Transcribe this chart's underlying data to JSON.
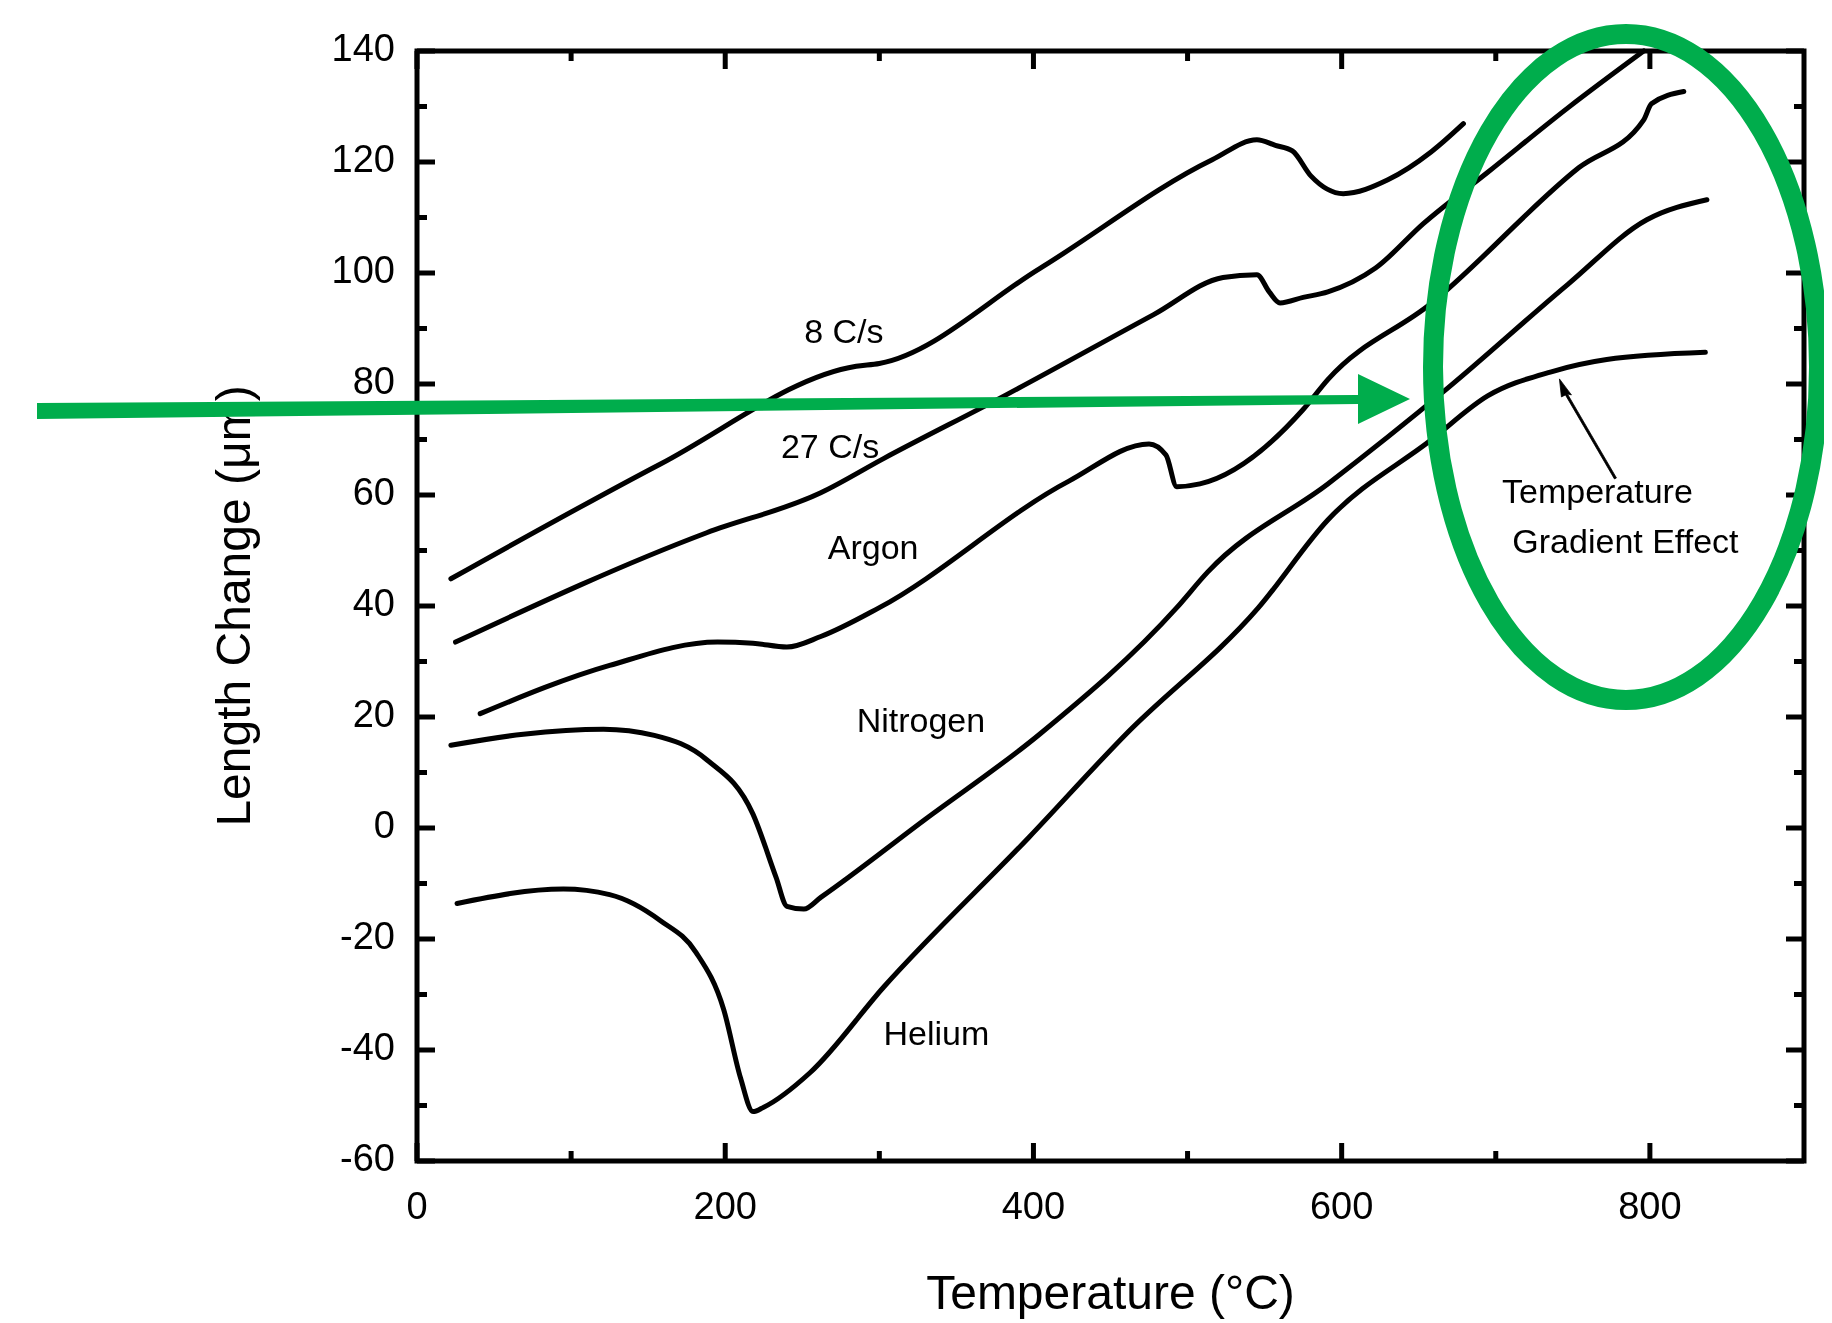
{
  "chart_data": {
    "type": "line",
    "xlabel": "Temperature (°C)",
    "ylabel": "Length Change (μm)",
    "xlim": [
      0,
      900
    ],
    "ylim": [
      -60,
      140
    ],
    "xticks": [
      0,
      {
        "value": 100,
        "label": null
      },
      200,
      {
        "value": 300,
        "label": null
      },
      400,
      {
        "value": 500,
        "label": null
      },
      600,
      {
        "value": 700,
        "label": null
      },
      800
    ],
    "yticks": [
      -60,
      {
        "value": -50,
        "label": null
      },
      -40,
      {
        "value": -30,
        "label": null
      },
      -20,
      {
        "value": -10,
        "label": null
      },
      0,
      {
        "value": 10,
        "label": null
      },
      20,
      {
        "value": 30,
        "label": null
      },
      40,
      {
        "value": 50,
        "label": null
      },
      60,
      {
        "value": 70,
        "label": null
      },
      80,
      {
        "value": 90,
        "label": null
      },
      100,
      {
        "value": 110,
        "label": null
      },
      120,
      {
        "value": 130,
        "label": null
      },
      140
    ],
    "series": [
      {
        "name": "8 C/s",
        "color": "#000000",
        "x": [
          22,
          158,
          285,
          300,
          404,
          516,
          545,
          557,
          568,
          580,
          601,
          630,
          658,
          679
        ],
        "values": [
          44.9,
          65.6,
          83.2,
          83.7,
          100.8,
          120.4,
          124,
          123,
          122,
          117.5,
          114.3,
          116.8,
          121.8,
          126.9
        ]
      },
      {
        "name": "27 C/s",
        "color": "#000000",
        "x": [
          25,
          188,
          262,
          303,
          382,
          478,
          523,
          545,
          553,
          560,
          575,
          591,
          622,
          653,
          695,
          747,
          796
        ],
        "values": [
          33.5,
          53.2,
          60.4,
          66.6,
          78,
          92.5,
          99.2,
          99.7,
          96.6,
          94.6,
          95.6,
          96.6,
          100.9,
          108.9,
          118.2,
          129.8,
          140
        ]
      },
      {
        "name": "Argon",
        "color": "#000000",
        "x": [
          41,
          125,
          195,
          218,
          240,
          262,
          300,
          423,
          475,
          486,
          493,
          508,
          575,
          591,
          658,
          754,
          796,
          801,
          822
        ],
        "values": [
          20.6,
          29.3,
          33.5,
          33.3,
          32.6,
          34.5,
          39.7,
          62.5,
          69.2,
          67.2,
          61.5,
          62,
          75.4,
          80.8,
          94.5,
          119,
          127.6,
          130.5,
          132.7
        ]
      },
      {
        "name": "Nitrogen",
        "color": "#000000",
        "x": [
          22,
          69,
          121,
          154,
          188,
          218,
          233,
          240,
          251,
          262,
          329,
          404,
          493,
          513,
          591,
          669,
          747,
          798,
          837
        ],
        "values": [
          14.9,
          16.9,
          17.8,
          16.7,
          12.3,
          2.5,
          -8.9,
          -14.1,
          -14.6,
          -12.5,
          1.4,
          16.9,
          39.7,
          46.1,
          62,
          79.3,
          98,
          109.6,
          113.2
        ]
      },
      {
        "name": "Helium",
        "color": "#000000",
        "x": [
          26,
          95,
          125,
          158,
          181,
          199,
          210,
          218,
          225,
          255,
          303,
          397,
          460,
          546,
          591,
          658,
          695,
          736,
          772,
          836
        ],
        "values": [
          -13.6,
          -11,
          -12,
          -16.7,
          -22.4,
          -32.7,
          -45.1,
          -51.1,
          -50.3,
          -44.1,
          -28.6,
          -1.7,
          16.9,
          39.7,
          55.5,
          69.9,
          77.9,
          82.2,
          84.4,
          85.7
        ]
      }
    ],
    "annotations": [
      {
        "text": "Temperature Gradient Effect",
        "x": 740,
        "y": 82
      }
    ]
  }
}
